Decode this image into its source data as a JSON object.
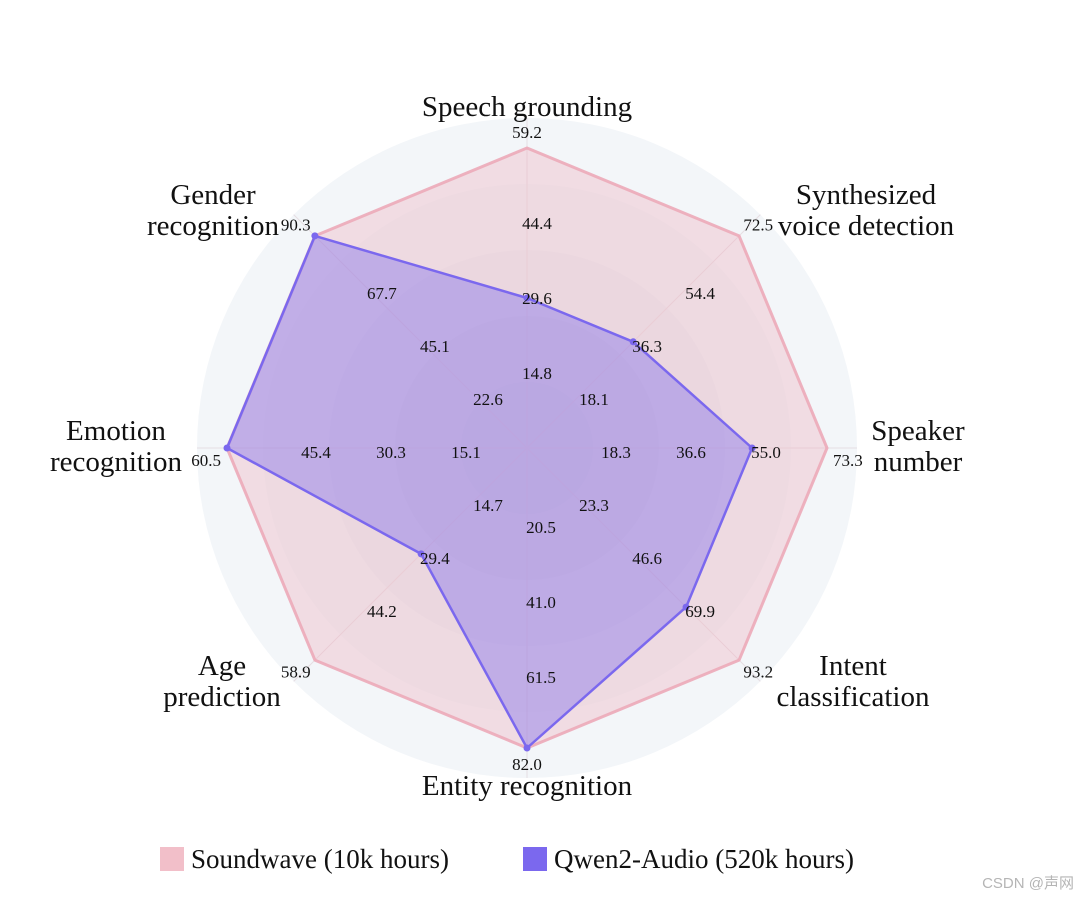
{
  "chart_data": {
    "type": "radar",
    "axes": [
      {
        "label_lines": [
          "Speech grounding"
        ],
        "max": 59.2,
        "ticks": [
          14.8,
          29.6,
          44.4,
          59.2
        ]
      },
      {
        "label_lines": [
          "Synthesized",
          "voice detection"
        ],
        "max": 72.5,
        "ticks": [
          18.1,
          36.3,
          54.4,
          72.5
        ]
      },
      {
        "label_lines": [
          "Speaker",
          "number"
        ],
        "max": 73.3,
        "ticks": [
          18.3,
          36.6,
          55.0,
          73.3
        ]
      },
      {
        "label_lines": [
          "Intent",
          "classification"
        ],
        "max": 93.2,
        "ticks": [
          23.3,
          46.6,
          69.9,
          93.2
        ]
      },
      {
        "label_lines": [
          "Entity recognition"
        ],
        "max": 82.0,
        "ticks": [
          20.5,
          41.0,
          61.5,
          82.0
        ]
      },
      {
        "label_lines": [
          "Age",
          "prediction"
        ],
        "max": 58.9,
        "ticks": [
          14.7,
          29.4,
          44.2,
          58.9
        ]
      },
      {
        "label_lines": [
          "Emotion",
          "recognition"
        ],
        "max": 60.5,
        "ticks": [
          15.1,
          30.3,
          45.4,
          60.5
        ]
      },
      {
        "label_lines": [
          "Gender",
          "recognition"
        ],
        "max": 90.3,
        "ticks": [
          22.6,
          45.1,
          67.7,
          90.3
        ]
      }
    ],
    "series": [
      {
        "name": "Soundwave (10k hours)",
        "color": "#f2c4cc",
        "values": [
          59.2,
          72.5,
          73.3,
          93.2,
          82.0,
          58.9,
          60.5,
          90.3
        ]
      },
      {
        "name": "Qwen2-Audio (520k hours)",
        "color": "#7b68ee",
        "values": [
          29.6,
          36.3,
          55.0,
          69.9,
          82.0,
          29.4,
          60.5,
          90.3
        ]
      }
    ],
    "legend_position": "bottom"
  },
  "watermark": "CSDN @声网"
}
